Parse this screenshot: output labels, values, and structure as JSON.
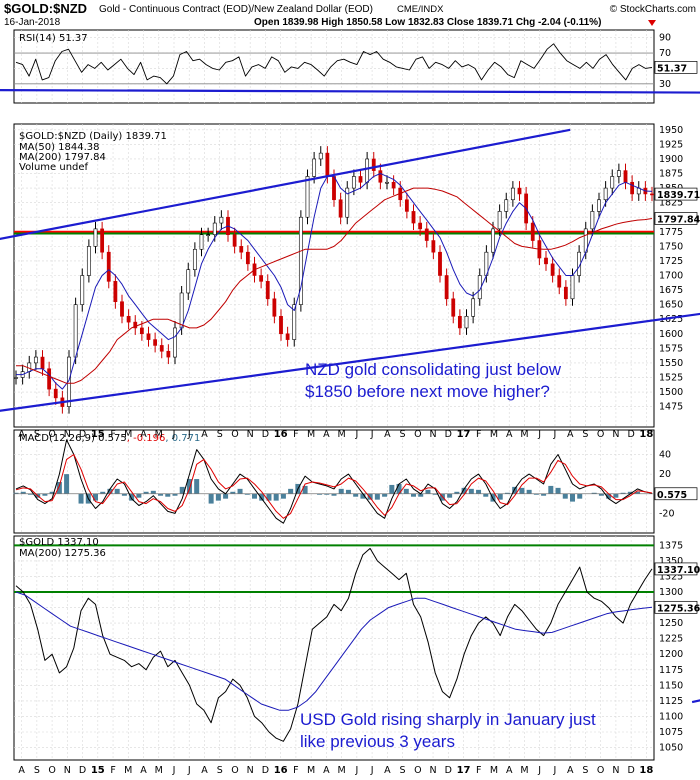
{
  "header": {
    "symbol": "$GOLD:$NZD",
    "description": "Gold - Continuous Contract (EOD)/New Zealand Dollar (EOD)",
    "exchange": "CME/INDX",
    "copyright": "© StockCharts.com",
    "date": "16-Jan-2018",
    "quote": "Open 1839.98  High 1850.58  Low 1832.83  Close 1839.71  Chg -2.04 (-0.11%)"
  },
  "chart_data": [
    {
      "type": "line",
      "title": "RSI(14) 51.37",
      "ylim": [
        5,
        100
      ],
      "yticks": [
        30,
        50,
        70,
        90
      ],
      "reference_lines": [
        30,
        70
      ],
      "last_value": 51.37,
      "last_value_label": "51.37",
      "x_month_labels": [
        "A",
        "S",
        "O",
        "N",
        "D",
        "15",
        "F",
        "M",
        "A",
        "M",
        "J",
        "J",
        "A",
        "S",
        "O",
        "N",
        "D",
        "16",
        "F",
        "M",
        "A",
        "M",
        "J",
        "J",
        "A",
        "S",
        "O",
        "N",
        "D",
        "17",
        "F",
        "M",
        "A",
        "M",
        "J",
        "J",
        "A",
        "S",
        "O",
        "N",
        "D",
        "18"
      ],
      "series": [
        {
          "name": "RSI(14)",
          "values": [
            58,
            55,
            40,
            62,
            35,
            38,
            60,
            72,
            75,
            60,
            45,
            55,
            50,
            58,
            48,
            55,
            62,
            50,
            42,
            58,
            35,
            40,
            38,
            30,
            40,
            68,
            72,
            60,
            62,
            55,
            50,
            48,
            58,
            60,
            65,
            40,
            52,
            55,
            50,
            65,
            60,
            45,
            52,
            50,
            58,
            55,
            48,
            40,
            52,
            60,
            62,
            58,
            55,
            72,
            68,
            72,
            62,
            58,
            52,
            50,
            48,
            62,
            65,
            50,
            58,
            55,
            50,
            60,
            52,
            55,
            50,
            35,
            48,
            58,
            52,
            42,
            38,
            60,
            55,
            50,
            62,
            75,
            82,
            70,
            60,
            55,
            50,
            58,
            50,
            62,
            68,
            55,
            45,
            35,
            50,
            55,
            50,
            51.37
          ]
        }
      ],
      "trendlines": [
        {
          "label": "RSI rising support",
          "points": [
            [
              -5,
              22
            ],
            [
              53,
              18
            ],
            [
              66,
              30
            ]
          ]
        }
      ]
    },
    {
      "type": "candlestick",
      "title": "$GOLD:$NZD (Daily) 1839.71",
      "legend": [
        "MA(50) 1844.38",
        "MA(200) 1797.84",
        "Volume undef"
      ],
      "ylim": [
        1440,
        1960
      ],
      "yticks": [
        1475,
        1500,
        1525,
        1550,
        1575,
        1600,
        1625,
        1650,
        1675,
        1700,
        1725,
        1750,
        1775,
        1800,
        1825,
        1850,
        1875,
        1900,
        1925,
        1950
      ],
      "last_close": 1839.71,
      "last_close_label": "1839.71",
      "ma200_last_label": "1797.84",
      "x_month_labels": [
        "A",
        "S",
        "O",
        "N",
        "D",
        "15",
        "F",
        "M",
        "A",
        "M",
        "J",
        "J",
        "A",
        "S",
        "O",
        "N",
        "D",
        "16",
        "F",
        "M",
        "A",
        "M",
        "J",
        "J",
        "A",
        "S",
        "O",
        "N",
        "D",
        "17",
        "F",
        "M",
        "A",
        "M",
        "J",
        "J",
        "A",
        "S",
        "O",
        "N",
        "D",
        "18"
      ],
      "series": [
        {
          "name": "close",
          "values": [
            1525,
            1535,
            1550,
            1560,
            1540,
            1505,
            1490,
            1475,
            1560,
            1650,
            1700,
            1750,
            1780,
            1740,
            1690,
            1655,
            1630,
            1620,
            1610,
            1600,
            1590,
            1580,
            1570,
            1560,
            1610,
            1670,
            1710,
            1745,
            1770,
            1770,
            1790,
            1800,
            1770,
            1750,
            1740,
            1720,
            1700,
            1690,
            1660,
            1630,
            1600,
            1590,
            1650,
            1800,
            1870,
            1900,
            1910,
            1870,
            1830,
            1800,
            1850,
            1870,
            1860,
            1900,
            1880,
            1860,
            1860,
            1850,
            1830,
            1810,
            1790,
            1780,
            1760,
            1740,
            1700,
            1660,
            1630,
            1610,
            1630,
            1660,
            1700,
            1740,
            1780,
            1810,
            1830,
            1850,
            1840,
            1790,
            1760,
            1730,
            1720,
            1700,
            1680,
            1660,
            1700,
            1740,
            1780,
            1810,
            1830,
            1850,
            1870,
            1880,
            1860,
            1840,
            1850,
            1840,
            1839.71
          ]
        },
        {
          "name": "MA(50) 1844.38",
          "values": [
            1530,
            1530,
            1535,
            1540,
            1540,
            1530,
            1515,
            1505,
            1520,
            1560,
            1600,
            1640,
            1680,
            1700,
            1710,
            1700,
            1685,
            1665,
            1650,
            1635,
            1620,
            1610,
            1600,
            1590,
            1595,
            1610,
            1640,
            1680,
            1720,
            1745,
            1765,
            1780,
            1785,
            1780,
            1770,
            1760,
            1745,
            1730,
            1715,
            1700,
            1680,
            1650,
            1640,
            1680,
            1740,
            1800,
            1850,
            1870,
            1870,
            1850,
            1840,
            1845,
            1850,
            1860,
            1870,
            1875,
            1870,
            1865,
            1855,
            1840,
            1825,
            1810,
            1795,
            1780,
            1765,
            1740,
            1710,
            1685,
            1670,
            1665,
            1675,
            1700,
            1730,
            1765,
            1790,
            1810,
            1825,
            1815,
            1795,
            1770,
            1750,
            1730,
            1715,
            1700,
            1700,
            1715,
            1740,
            1770,
            1800,
            1825,
            1840,
            1855,
            1860,
            1855,
            1850,
            1845,
            1844.38
          ]
        },
        {
          "name": "MA(200) 1797.84",
          "values": [
            1545,
            1545,
            1540,
            1535,
            1530,
            1525,
            1520,
            1515,
            1515,
            1520,
            1530,
            1540,
            1555,
            1570,
            1590,
            1600,
            1610,
            1615,
            1620,
            1625,
            1625,
            1625,
            1620,
            1615,
            1610,
            1610,
            1615,
            1625,
            1640,
            1655,
            1675,
            1690,
            1700,
            1710,
            1715,
            1720,
            1725,
            1730,
            1735,
            1740,
            1745,
            1745,
            1745,
            1745,
            1750,
            1760,
            1775,
            1790,
            1800,
            1810,
            1820,
            1830,
            1835,
            1840,
            1845,
            1850,
            1850,
            1850,
            1848,
            1845,
            1840,
            1835,
            1825,
            1815,
            1805,
            1795,
            1785,
            1775,
            1765,
            1755,
            1750,
            1748,
            1746,
            1745,
            1745,
            1748,
            1752,
            1758,
            1765,
            1770,
            1775,
            1780,
            1784,
            1788,
            1791,
            1793,
            1795,
            1796,
            1797.84
          ]
        }
      ],
      "horizontal_lines": [
        {
          "color": "#ff0000",
          "value": 1775
        },
        {
          "color": "#008000",
          "value": 1772
        }
      ],
      "trendlines": [
        {
          "label": "upper channel",
          "points": [
            [
              -5,
              1745
            ],
            [
              36,
              1950
            ]
          ]
        },
        {
          "label": "lower channel",
          "points": [
            [
              -5,
              1455
            ],
            [
              60,
              1690
            ]
          ]
        },
        {
          "label": "upper channel 2",
          "points": [
            [
              45,
              1825
            ],
            [
              66,
              1930
            ]
          ]
        }
      ],
      "annotation": "NZD gold consolidating just below\n$1850 before next move higher?"
    },
    {
      "type": "line",
      "title": "MACD(12,26,9) 0.575, -0.196, 0.771",
      "legend": [
        "MACD(12,26,9) 0.575",
        "-0.196",
        "0.771"
      ],
      "ylim": [
        -40,
        65
      ],
      "yticks": [
        -20,
        0,
        20,
        40
      ],
      "last_value_label": "0.575",
      "x_month_labels": [
        "A",
        "S",
        "O",
        "N",
        "D",
        "15",
        "F",
        "M",
        "A",
        "M",
        "J",
        "J",
        "A",
        "S",
        "O",
        "N",
        "D",
        "16",
        "F",
        "M",
        "A",
        "M",
        "J",
        "J",
        "A",
        "S",
        "O",
        "N",
        "D",
        "17",
        "F",
        "M",
        "A",
        "M",
        "J",
        "J",
        "A",
        "S",
        "O",
        "N",
        "D",
        "18"
      ],
      "series": [
        {
          "name": "MACD(12,26,9) 0.575",
          "values": [
            5,
            8,
            4,
            -6,
            -10,
            -5,
            20,
            55,
            40,
            15,
            -5,
            -15,
            -8,
            5,
            15,
            10,
            -5,
            -12,
            -8,
            -2,
            -10,
            -18,
            -20,
            -5,
            20,
            45,
            35,
            15,
            5,
            0,
            10,
            20,
            15,
            5,
            -5,
            -15,
            -25,
            -30,
            -15,
            5,
            18,
            12,
            10,
            8,
            5,
            15,
            20,
            10,
            0,
            -10,
            -20,
            -25,
            -5,
            10,
            15,
            5,
            0,
            10,
            5,
            -10,
            -15,
            -8,
            5,
            15,
            20,
            10,
            -5,
            -15,
            -10,
            5,
            15,
            20,
            15,
            10,
            30,
            40,
            25,
            10,
            5,
            8,
            10,
            5,
            -5,
            -10,
            -5,
            0,
            5,
            2,
            0.575
          ]
        },
        {
          "name": "-0.196",
          "values": [
            4,
            6,
            5,
            -2,
            -8,
            -7,
            8,
            35,
            40,
            25,
            5,
            -8,
            -10,
            0,
            10,
            12,
            2,
            -8,
            -10,
            -5,
            -8,
            -15,
            -18,
            -12,
            5,
            30,
            35,
            25,
            12,
            5,
            8,
            15,
            16,
            10,
            2,
            -8,
            -18,
            -25,
            -20,
            -5,
            10,
            12,
            11,
            9,
            7,
            10,
            16,
            13,
            5,
            -4,
            -14,
            -22,
            -14,
            0,
            10,
            8,
            3,
            6,
            6,
            -3,
            -11,
            -10,
            -1,
            10,
            16,
            13,
            3,
            -9,
            -11,
            -2,
            9,
            16,
            16,
            12,
            22,
            34,
            30,
            18,
            10,
            8,
            9,
            7,
            0,
            -6,
            -6,
            -2,
            3,
            2,
            0.771
          ]
        }
      ]
    },
    {
      "type": "line",
      "title": "$GOLD 1337.10",
      "legend": [
        "$GOLD 1337.10",
        "MA(200) 1275.36"
      ],
      "ylim": [
        1030,
        1390
      ],
      "yticks": [
        1050,
        1075,
        1100,
        1125,
        1150,
        1175,
        1200,
        1225,
        1250,
        1275,
        1300,
        1325,
        1350,
        1375
      ],
      "last_close_label": "1337.10",
      "ma200_last_label": "1275.36",
      "x_month_labels": [
        "A",
        "S",
        "O",
        "N",
        "D",
        "15",
        "F",
        "M",
        "A",
        "M",
        "J",
        "J",
        "A",
        "S",
        "O",
        "N",
        "D",
        "16",
        "F",
        "M",
        "A",
        "M",
        "J",
        "J",
        "A",
        "S",
        "O",
        "N",
        "D",
        "17",
        "F",
        "M",
        "A",
        "M",
        "J",
        "J",
        "A",
        "S",
        "O",
        "N",
        "D",
        "18"
      ],
      "series": [
        {
          "name": "$GOLD 1337.10",
          "values": [
            1310,
            1300,
            1280,
            1240,
            1190,
            1200,
            1170,
            1180,
            1210,
            1270,
            1290,
            1280,
            1230,
            1200,
            1195,
            1190,
            1180,
            1185,
            1175,
            1195,
            1205,
            1180,
            1190,
            1170,
            1150,
            1120,
            1110,
            1090,
            1130,
            1140,
            1160,
            1150,
            1130,
            1100,
            1090,
            1075,
            1065,
            1060,
            1080,
            1120,
            1180,
            1240,
            1250,
            1260,
            1280,
            1270,
            1290,
            1330,
            1360,
            1370,
            1350,
            1340,
            1330,
            1320,
            1330,
            1280,
            1260,
            1220,
            1170,
            1140,
            1130,
            1160,
            1200,
            1230,
            1250,
            1260,
            1250,
            1230,
            1260,
            1280,
            1270,
            1255,
            1240,
            1230,
            1250,
            1280,
            1300,
            1320,
            1340,
            1300,
            1290,
            1285,
            1275,
            1260,
            1250,
            1280,
            1300,
            1320,
            1337.1
          ]
        },
        {
          "name": "MA(200) 1275.36",
          "values": [
            1300,
            1295,
            1285,
            1275,
            1265,
            1255,
            1245,
            1240,
            1235,
            1230,
            1225,
            1220,
            1215,
            1210,
            1205,
            1200,
            1195,
            1190,
            1185,
            1180,
            1175,
            1170,
            1165,
            1160,
            1150,
            1140,
            1130,
            1120,
            1115,
            1110,
            1110,
            1115,
            1125,
            1140,
            1160,
            1180,
            1200,
            1220,
            1240,
            1255,
            1265,
            1275,
            1280,
            1285,
            1290,
            1290,
            1285,
            1280,
            1275,
            1270,
            1265,
            1260,
            1255,
            1250,
            1245,
            1240,
            1238,
            1236,
            1234,
            1235,
            1240,
            1245,
            1250,
            1255,
            1260,
            1265,
            1268,
            1270,
            1272,
            1274,
            1275.36
          ]
        }
      ],
      "horizontal_lines": [
        {
          "color": "#008000",
          "value": 1375
        },
        {
          "color": "#008000",
          "value": 1300
        }
      ],
      "trendlines": [
        {
          "label": "rising support",
          "points": [
            [
              44,
              1123
            ],
            [
              66,
              1243
            ]
          ]
        }
      ],
      "annotation": "USD Gold rising sharply in January just\nlike previous 3 years"
    }
  ]
}
